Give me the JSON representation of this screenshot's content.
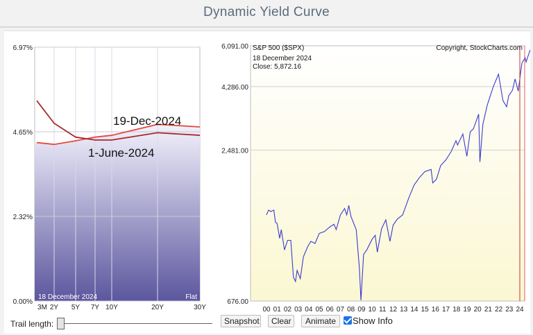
{
  "page": {
    "title": "Dynamic Yield Curve"
  },
  "yield_panel": {
    "y_ticks": [
      "6.97%",
      "4.65%",
      "2.32%",
      "0.00%"
    ],
    "x_ticks": [
      "3M",
      "2Y",
      "5Y",
      "7Y",
      "10Y",
      "20Y",
      "30Y"
    ],
    "date_label": "18  December 2024",
    "shape_label": "Flat",
    "annotation_top": "19-Dec-2024",
    "annotation_bottom": "1-June-2024"
  },
  "spx_panel": {
    "symbol": "S&P 500 ($SPX)",
    "copyright": "Copyright, StockCharts.com",
    "date": "18  December 2024",
    "close": "Close: 5,872.16",
    "y_ticks": [
      "6,091.00",
      "4,286.00",
      "2,481.00",
      "676.00"
    ],
    "x_ticks": [
      "00",
      "01",
      "02",
      "03",
      "04",
      "05",
      "06",
      "07",
      "08",
      "09",
      "10",
      "11",
      "12",
      "13",
      "14",
      "15",
      "16",
      "17",
      "18",
      "19",
      "20",
      "21",
      "22",
      "23",
      "24"
    ]
  },
  "controls": {
    "trail_label": "Trail length:",
    "snapshot": "Snapshot",
    "clear": "Clear",
    "animate": "Animate",
    "show_info": "Show Info",
    "show_info_checked": true
  },
  "chart_data": [
    {
      "type": "line",
      "x": [
        "3M",
        "2Y",
        "5Y",
        "7Y",
        "10Y",
        "20Y",
        "30Y"
      ],
      "series": [
        {
          "name": "19-Dec-2024",
          "values": [
            4.35,
            4.3,
            4.4,
            4.5,
            4.55,
            4.85,
            4.78
          ],
          "color": "#e8473a"
        },
        {
          "name": "1-June-2024",
          "values": [
            5.5,
            4.88,
            4.5,
            4.42,
            4.42,
            4.62,
            4.55
          ],
          "color": "#a52a2a"
        }
      ],
      "ylim": [
        0,
        6.97
      ],
      "fill_gradient": [
        "#f1f0fb",
        "#5a549b"
      ]
    },
    {
      "type": "line",
      "title": "S&P 500 ($SPX)",
      "x_range": [
        2000.0,
        2024.97
      ],
      "ylim": [
        676,
        6091
      ],
      "log_scale": true,
      "series": [
        {
          "name": "S&P 500 ($SPX)",
          "color": "#3a3ad1",
          "x": [
            2000.0,
            2000.2,
            2000.4,
            2000.7,
            2000.85,
            2001.0,
            2001.25,
            2001.4,
            2001.7,
            2002.0,
            2002.3,
            2002.55,
            2002.75,
            2002.9,
            2003.2,
            2003.5,
            2003.9,
            2004.2,
            2004.6,
            2005.0,
            2005.5,
            2006.0,
            2006.4,
            2006.6,
            2007.0,
            2007.4,
            2007.6,
            2007.8,
            2008.0,
            2008.5,
            2008.8,
            2008.95,
            2009.2,
            2009.5,
            2010.0,
            2010.3,
            2010.5,
            2010.9,
            2011.3,
            2011.7,
            2012.0,
            2012.4,
            2012.9,
            2013.5,
            2014.0,
            2014.5,
            2015.0,
            2015.6,
            2015.75,
            2016.1,
            2016.5,
            2017.0,
            2017.5,
            2017.95,
            2018.1,
            2018.6,
            2018.98,
            2019.3,
            2019.6,
            2020.1,
            2020.22,
            2020.5,
            2020.9,
            2021.5,
            2021.98,
            2022.4,
            2022.75,
            2022.95,
            2023.3,
            2023.55,
            2023.85,
            2024.2,
            2024.5,
            2024.6,
            2024.97
          ],
          "values": [
            1420,
            1480,
            1460,
            1480,
            1330,
            1320,
            1160,
            1250,
            1050,
            1140,
            1140,
            830,
            800,
            880,
            820,
            990,
            1080,
            1130,
            1110,
            1210,
            1230,
            1280,
            1310,
            1250,
            1420,
            1500,
            1420,
            1540,
            1400,
            1250,
            900,
            680,
            1010,
            1050,
            1150,
            1190,
            1030,
            1260,
            1360,
            1130,
            1300,
            1370,
            1420,
            1650,
            1840,
            1960,
            2060,
            2100,
            1870,
            1930,
            2170,
            2280,
            2450,
            2690,
            2590,
            2850,
            2350,
            2900,
            2980,
            3380,
            2240,
            3100,
            3640,
            4300,
            4770,
            3800,
            3600,
            3960,
            4150,
            4580,
            4120,
            5250,
            5500,
            5300,
            5872
          ]
        }
      ]
    }
  ]
}
